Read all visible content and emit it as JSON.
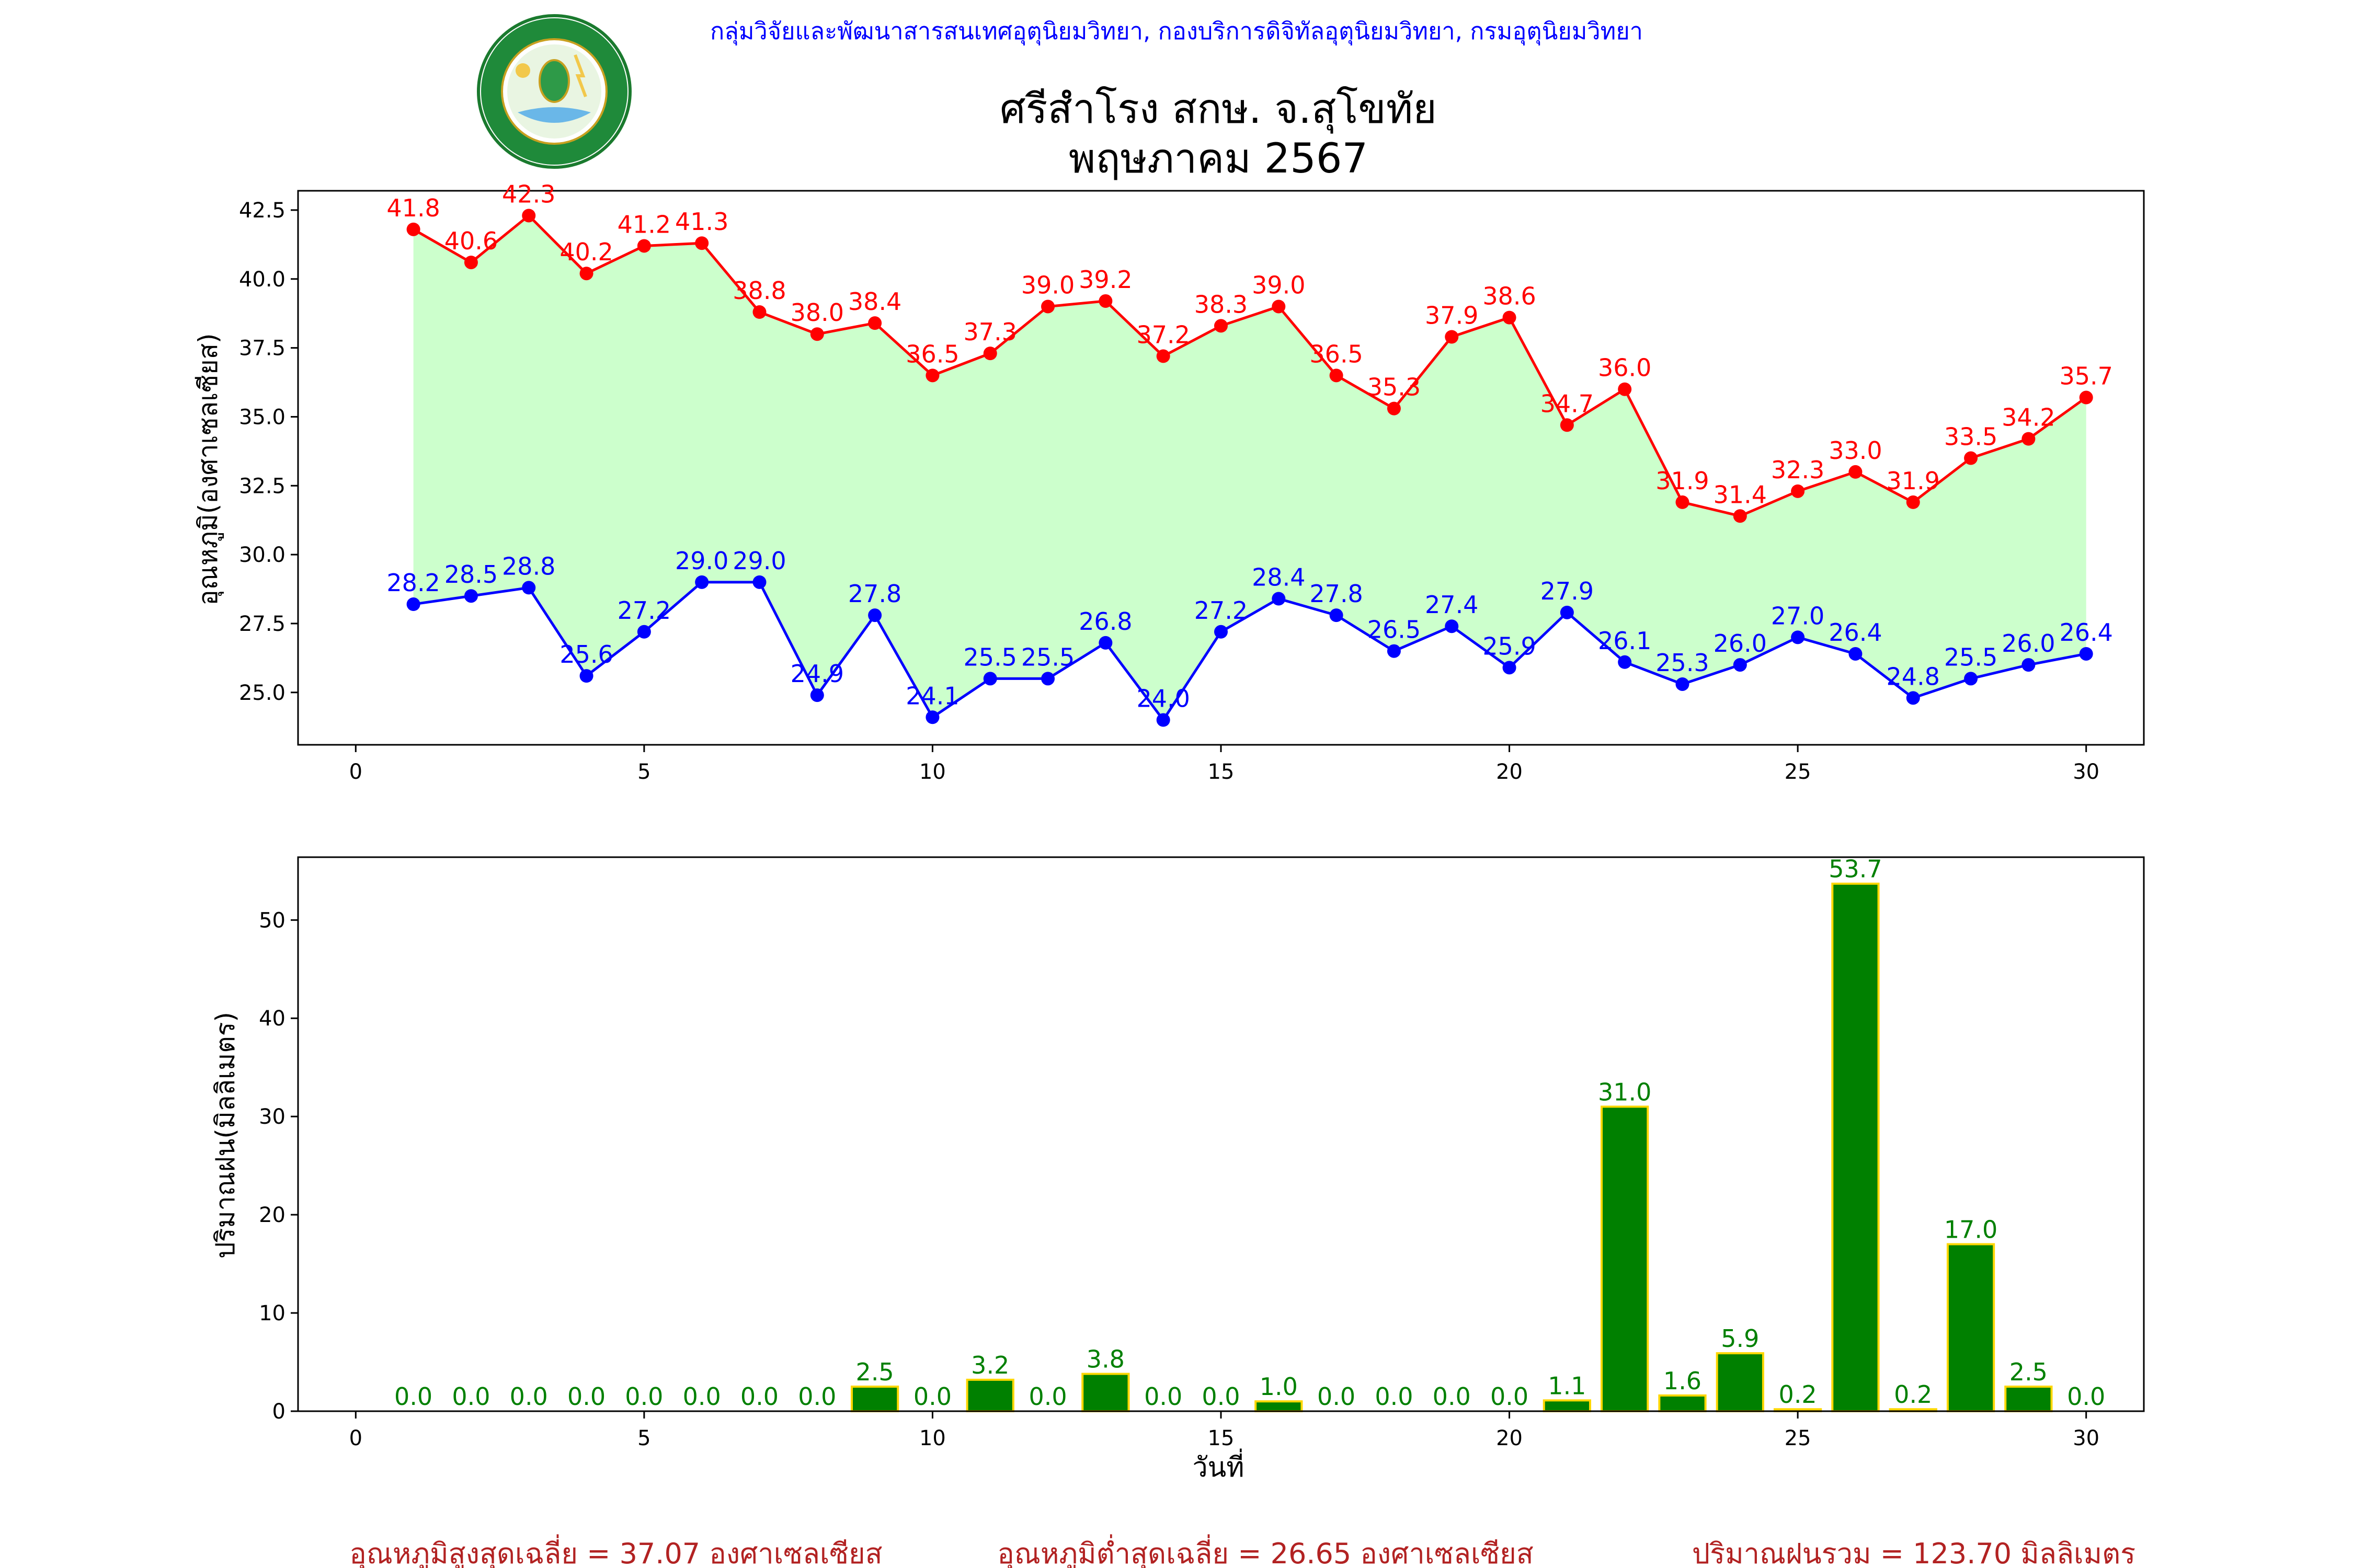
{
  "header": {
    "agency_line": "กลุ่มวิจัยและพัฒนาสารสนเทศอุตุนิยมวิทยา, กองบริการดิจิทัลอุตุนิยมวิทยา, กรมอุตุนิยมวิทยา",
    "station": "ศรีสำโรง สกษ. จ.สุโขทัย",
    "period": "พฤษภาคม 2567",
    "logo_text_top": "กรมอุตุนิยมวิทยา",
    "logo_text_bottom": "METEOROLOGICAL DEPARTMENT"
  },
  "colors": {
    "max_line": "#ff0000",
    "min_line": "#0000ff",
    "fill_between": "#ccffcc",
    "rain_bar": "#008000",
    "rain_bar_edge": "#ffd700",
    "rain_label": "#008000",
    "header_line": "#0000ff",
    "footer_text": "#b22222"
  },
  "chart_data": [
    {
      "type": "line",
      "ylabel": "อุณหภูมิ(องศาเซลเซียส)",
      "xlabel": "",
      "xlim": [
        -1,
        31
      ],
      "ylim": [
        23.1,
        43.2
      ],
      "xticks": [
        0,
        5,
        10,
        15,
        20,
        25,
        30
      ],
      "yticks": [
        25.0,
        27.5,
        30.0,
        32.5,
        35.0,
        37.5,
        40.0,
        42.5
      ],
      "x": [
        1,
        2,
        3,
        4,
        5,
        6,
        7,
        8,
        9,
        10,
        11,
        12,
        13,
        14,
        15,
        16,
        17,
        18,
        19,
        20,
        21,
        22,
        23,
        24,
        25,
        26,
        27,
        28,
        29,
        30
      ],
      "fill_between_series": true,
      "series": [
        {
          "key": "max",
          "values": [
            41.8,
            40.6,
            42.3,
            40.2,
            41.2,
            41.3,
            38.8,
            38.0,
            38.4,
            36.5,
            37.3,
            39.0,
            39.2,
            37.2,
            38.3,
            39.0,
            36.5,
            35.3,
            37.9,
            38.6,
            34.7,
            36.0,
            31.9,
            31.4,
            32.3,
            33.0,
            31.9,
            33.5,
            34.2,
            35.7
          ]
        },
        {
          "key": "min",
          "values": [
            28.2,
            28.5,
            28.8,
            25.6,
            27.2,
            29.0,
            29.0,
            24.9,
            27.8,
            24.1,
            25.5,
            25.5,
            26.8,
            24.0,
            27.2,
            28.4,
            27.8,
            26.5,
            27.4,
            25.9,
            27.9,
            26.1,
            25.3,
            26.0,
            27.0,
            26.4,
            24.8,
            25.5,
            26.0,
            26.4
          ]
        }
      ]
    },
    {
      "type": "bar",
      "ylabel": "ปริมาณฝน(มิลลิเมตร)",
      "xlabel": "วันที่",
      "xlim": [
        -1,
        31
      ],
      "ylim": [
        0,
        56.4
      ],
      "xticks": [
        0,
        5,
        10,
        15,
        20,
        25,
        30
      ],
      "yticks": [
        0,
        10,
        20,
        30,
        40,
        50
      ],
      "x": [
        1,
        2,
        3,
        4,
        5,
        6,
        7,
        8,
        9,
        10,
        11,
        12,
        13,
        14,
        15,
        16,
        17,
        18,
        19,
        20,
        21,
        22,
        23,
        24,
        25,
        26,
        27,
        28,
        29,
        30
      ],
      "values": [
        0.0,
        0.0,
        0.0,
        0.0,
        0.0,
        0.0,
        0.0,
        0.0,
        2.5,
        0.0,
        3.2,
        0.0,
        3.8,
        0.0,
        0.0,
        1.0,
        0.0,
        0.0,
        0.0,
        0.0,
        1.1,
        31.0,
        1.6,
        5.9,
        0.2,
        53.7,
        0.2,
        17.0,
        2.5,
        0.0
      ]
    }
  ],
  "footer": {
    "avg_max": "อุณหภูมิสูงสุดเฉลี่ย = 37.07 องศาเซลเซียส",
    "avg_min": "อุณหภูมิต่ำสุดเฉลี่ย = 26.65 องศาเซลเซียส",
    "total_rain": "ปริมาณฝนรวม = 123.70 มิลลิเมตร"
  }
}
